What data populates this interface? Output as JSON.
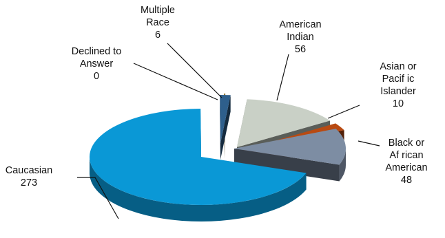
{
  "chart_data": {
    "type": "pie",
    "title": "",
    "three_d": true,
    "exploded": true,
    "legend": "none",
    "categories": [
      "American Indian",
      "Asian or Pacific Islander",
      "Black or African American",
      "Caucasian",
      "Declined to Answer",
      "Multiple Race"
    ],
    "values": [
      56,
      10,
      48,
      273,
      0,
      6
    ],
    "data_labels": [
      {
        "lines": [
          "American",
          "Indian",
          "56"
        ]
      },
      {
        "lines": [
          "Asian or",
          "Pacif ic",
          "Islander",
          "10"
        ]
      },
      {
        "lines": [
          "Black or",
          "Af rican",
          "American",
          "48"
        ]
      },
      {
        "lines": [
          "Caucasian",
          "273"
        ]
      },
      {
        "lines": [
          "Declined to",
          "Answer",
          "0"
        ]
      },
      {
        "lines": [
          "Multiple",
          "Race",
          "6"
        ]
      }
    ],
    "colors": [
      "#c9d0c6",
      "#b84a12",
      "#7d8da3",
      "#0a98d6",
      "#8a6a20",
      "#2e5f8c"
    ]
  }
}
